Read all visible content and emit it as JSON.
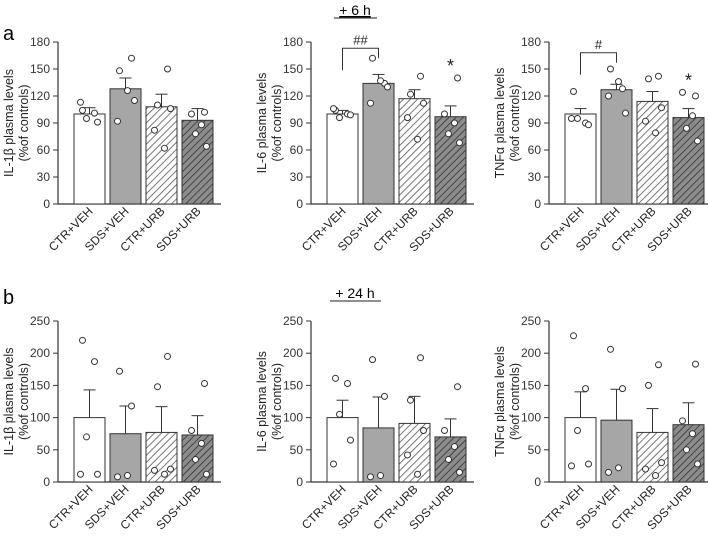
{
  "figure": {
    "panel_a_label": "a",
    "panel_b_label": "b",
    "time_a": "+ 6 h",
    "time_b": "+ 24 h"
  },
  "colors": {
    "ctr_veh": "#ffffff",
    "sds_veh": "#a6a6a6",
    "ctr_urb": "#ffffff",
    "sds_urb": "#8c8c8c",
    "hatch": "#555555",
    "axis": "#333333"
  },
  "chart_data": [
    {
      "id": "il1b-6h",
      "type": "bar",
      "row": "a",
      "ylabel": [
        "IL-1β plasma levels",
        "(%of controls)"
      ],
      "ylim": [
        0,
        180
      ],
      "yticks": [
        0,
        30,
        60,
        90,
        120,
        150,
        180
      ],
      "categories": [
        "CTR+VEH",
        "SDS+VEH",
        "CTR+URB",
        "SDS+URB"
      ],
      "values": [
        100,
        128,
        108,
        93
      ],
      "sem": [
        7,
        12,
        14,
        13
      ],
      "points": [
        [
          104,
          101,
          95,
          91,
          113
        ],
        [
          148,
          162,
          126,
          92,
          115
        ],
        [
          150,
          110,
          106,
          82,
          62
        ],
        [
          102,
          100,
          88,
          78,
          64
        ]
      ],
      "comparison": null,
      "stars": []
    },
    {
      "id": "il6-6h",
      "type": "bar",
      "row": "a",
      "ylabel": [
        "IL-6 plasma levels",
        "(%of controls)"
      ],
      "ylim": [
        0,
        180
      ],
      "yticks": [
        0,
        30,
        60,
        90,
        120,
        150,
        180
      ],
      "categories": [
        "CTR+VEH",
        "SDS+VEH",
        "CTR+URB",
        "SDS+URB"
      ],
      "values": [
        100,
        134,
        117,
        97
      ],
      "sem": [
        4,
        10,
        10,
        12
      ],
      "points": [
        [
          104,
          100,
          96,
          99,
          106
        ],
        [
          162,
          134,
          137,
          112,
          130
        ],
        [
          142,
          122,
          112,
          96,
          72
        ],
        [
          140,
          100,
          90,
          78,
          68
        ]
      ],
      "comparison": {
        "from": 0,
        "to": 1,
        "y": 173,
        "text": "##"
      },
      "stars": [
        {
          "index": 3,
          "text": "*"
        }
      ]
    },
    {
      "id": "tnfa-6h",
      "type": "bar",
      "row": "a",
      "ylabel": [
        "TNFα plasma levels",
        "(%of controls)"
      ],
      "ylim": [
        0,
        180
      ],
      "yticks": [
        0,
        30,
        60,
        90,
        120,
        150,
        180
      ],
      "categories": [
        "CTR+VEH",
        "SDS+VEH",
        "CTR+URB",
        "SDS+URB"
      ],
      "values": [
        100,
        127,
        114,
        96
      ],
      "sem": [
        6,
        6,
        11,
        10
      ],
      "points": [
        [
          125,
          90,
          95,
          88,
          95
        ],
        [
          150,
          128,
          136,
          120,
          101
        ],
        [
          142,
          139,
          107,
          92,
          79
        ],
        [
          120,
          124,
          98,
          84,
          70
        ]
      ],
      "comparison": {
        "from": 0,
        "to": 1,
        "y": 168,
        "text": "#"
      },
      "stars": [
        {
          "index": 3,
          "text": "*"
        }
      ]
    },
    {
      "id": "il1b-24h",
      "type": "bar",
      "row": "b",
      "ylabel": [
        "IL-1β plasma levels",
        "(%of controls)"
      ],
      "ylim": [
        0,
        250
      ],
      "yticks": [
        0,
        50,
        100,
        150,
        200,
        250
      ],
      "categories": [
        "CTR+VEH",
        "SDS+VEH",
        "CTR+URB",
        "SDS+URB"
      ],
      "values": [
        100,
        75,
        77,
        73
      ],
      "sem": [
        43,
        43,
        40,
        30
      ],
      "points": [
        [
          220,
          187,
          70,
          12,
          12
        ],
        [
          172,
          118,
          10,
          8
        ],
        [
          195,
          148,
          20,
          18,
          12
        ],
        [
          153,
          80,
          60,
          35,
          12
        ]
      ],
      "comparison": null,
      "stars": []
    },
    {
      "id": "il6-24h",
      "type": "bar",
      "row": "b",
      "ylabel": [
        "IL-6 plasma levels",
        "(%of controls)"
      ],
      "ylim": [
        0,
        250
      ],
      "yticks": [
        0,
        50,
        100,
        150,
        200,
        250
      ],
      "categories": [
        "CTR+VEH",
        "SDS+VEH",
        "CTR+URB",
        "SDS+URB"
      ],
      "values": [
        100,
        84,
        91,
        70
      ],
      "sem": [
        27,
        48,
        42,
        28
      ],
      "points": [
        [
          161,
          153,
          105,
          65,
          28
        ],
        [
          190,
          133,
          10,
          8
        ],
        [
          193,
          127,
          80,
          42,
          12
        ],
        [
          148,
          80,
          55,
          35,
          15
        ]
      ],
      "comparison": null,
      "stars": []
    },
    {
      "id": "tnfa-24h",
      "type": "bar",
      "row": "b",
      "ylabel": [
        "TNFα plasma levels",
        "(%of controls)"
      ],
      "ylim": [
        0,
        250
      ],
      "yticks": [
        0,
        50,
        100,
        150,
        200,
        250
      ],
      "categories": [
        "CTR+VEH",
        "SDS+VEH",
        "CTR+URB",
        "SDS+URB"
      ],
      "values": [
        100,
        96,
        77,
        89
      ],
      "sem": [
        40,
        48,
        37,
        34
      ],
      "points": [
        [
          227,
          145,
          80,
          28,
          25
        ],
        [
          206,
          145,
          22,
          15
        ],
        [
          182,
          150,
          30,
          20,
          10
        ],
        [
          183,
          95,
          75,
          50,
          28
        ]
      ],
      "comparison": null,
      "stars": []
    }
  ]
}
